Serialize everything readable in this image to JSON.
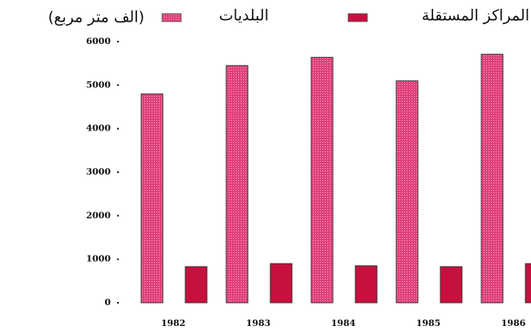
{
  "chart_data": {
    "type": "bar",
    "title": "(الف متر مربع)",
    "categories": [
      "1982",
      "1983",
      "1984",
      "1985",
      "1986"
    ],
    "series": [
      {
        "name": "البلديات",
        "color": "#e0407a",
        "values": [
          4800,
          5450,
          5640,
          5100,
          5710
        ]
      },
      {
        "name": "المراكز المستقلة",
        "color": "#c8103e",
        "values": [
          830,
          900,
          850,
          830,
          900
        ]
      }
    ],
    "ylim": [
      0,
      6000
    ],
    "yticks": [
      0,
      1000,
      2000,
      3000,
      4000,
      5000,
      6000
    ]
  }
}
